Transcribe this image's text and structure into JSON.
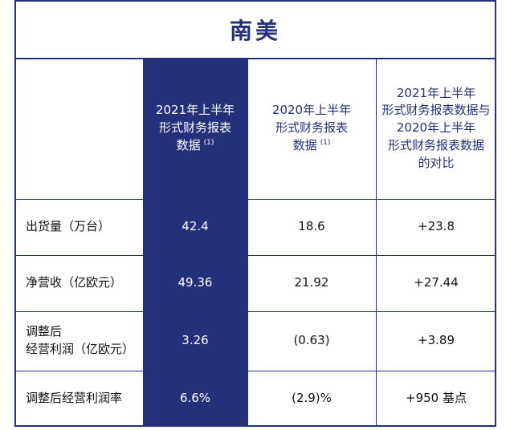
{
  "title": "南美",
  "columns": {
    "col1": {
      "line1": "2021年上半年",
      "line2": "形式财务报表",
      "line3": "数据",
      "note": "(1)"
    },
    "col2": {
      "line1": "2020年上半年",
      "line2": "形式财务报表",
      "line3": "数据",
      "note": "(1)"
    },
    "col3": {
      "line1": "2021年上半年",
      "line2": "形式财务报表数据与",
      "line3": "2020年上半年",
      "line4": "形式财务报表数据",
      "line5": "的对比"
    }
  },
  "rows": [
    {
      "label": "出货量（万台）",
      "v2021": "42.4",
      "v2020": "18.6",
      "diff": "+23.8"
    },
    {
      "label": "净营收（亿欧元）",
      "v2021": "49.36",
      "v2020": "21.92",
      "diff": "+27.44"
    },
    {
      "label_line1": "调整后",
      "label_line2": "经营利润（亿欧元）",
      "v2021": "3.26",
      "v2020": "(0.63)",
      "diff": "+3.89"
    },
    {
      "label": "调整后经营利润率",
      "v2021": "6.6%",
      "v2020": "(2.9)%",
      "diff": "+950 基点"
    }
  ],
  "colors": {
    "accent": "#23317a",
    "text": "#111111",
    "background": "#ffffff"
  }
}
